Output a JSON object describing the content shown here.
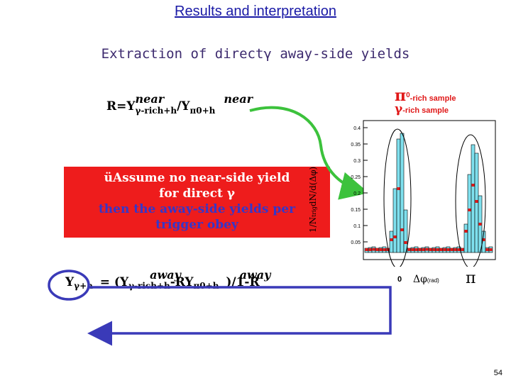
{
  "slide": {
    "title": "Results and interpretation",
    "subtitle": "Extraction of directγ away-side yields",
    "page_number": "54"
  },
  "ratio_eq": {
    "lhs": "R=Y",
    "sup1": "near",
    "sub1": "γ-rich+h",
    "mid": "/Y",
    "sub2": "π0+h",
    "sup2": "near"
  },
  "red_box": {
    "line1": "üAssume no near-side yield",
    "line2": "for direct γ",
    "line3": "then the away-side yields per",
    "line4": "trigger obey"
  },
  "yield_eq": {
    "y": "Y",
    "sub_y": "γ+h",
    "eq": "= (Y",
    "sup_away1": "away",
    "sub_rich": "γ-rich+h",
    "minus": "-RY",
    "sub_pi": "π0+h",
    "tail": ")/1-R",
    "sup_away2": "away"
  },
  "plot": {
    "legend_pi0": "π",
    "legend_pi0_sup": "0",
    "legend_pi0_text": "-rich sample",
    "legend_gamma": "γ",
    "legend_gamma_text": "-rich sample",
    "ylabel": "1/N",
    "ylabel_sub": "trig",
    "ylabel_rest": "dN/d(Δφ)",
    "yticks": [
      "0.4",
      "0.35",
      "0.3",
      "0.25",
      "0.2",
      "0.15",
      "0.1",
      "0.05"
    ],
    "xtick_0": "0",
    "xtick_pi": "π",
    "xlabel": "Δφ",
    "xlabel_unit": "(rad)"
  },
  "colors": {
    "accent": "#1a1aa6",
    "red_box": "#ee1c1c",
    "arrow_green": "#3cc23c",
    "circle_blue": "#3a3ab8",
    "hist_cyan": "#7fe0ee",
    "marker_red": "#e01818"
  }
}
